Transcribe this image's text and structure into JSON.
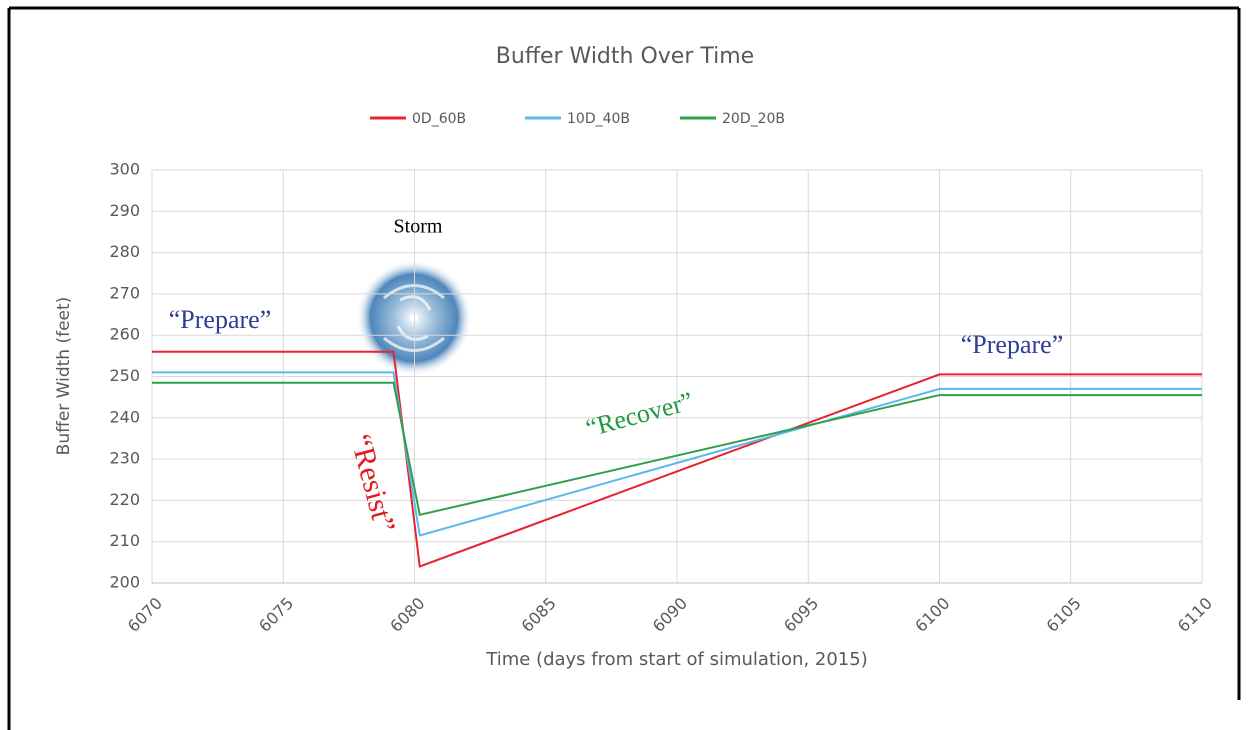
{
  "chart_data": {
    "type": "line",
    "title": "Buffer Width Over Time",
    "x_label": "Time (days from start of simulation, 2015)",
    "y_label": "Buffer  Width (feet)",
    "x": [
      6070,
      6079.2,
      6080.2,
      6100,
      6110
    ],
    "series": [
      {
        "name": "0D_60B",
        "color": "#e8222e",
        "values": [
          256,
          256,
          204,
          250.5,
          250.5
        ]
      },
      {
        "name": "10D_40B",
        "color": "#5bb8ea",
        "values": [
          251,
          251,
          211.5,
          247,
          247
        ]
      },
      {
        "name": "20D_20B",
        "color": "#2ea04a",
        "values": [
          248.5,
          248.5,
          216.5,
          245.5,
          245.5
        ]
      }
    ],
    "xlim": [
      6070,
      6110
    ],
    "xticks": [
      6070,
      6075,
      6080,
      6085,
      6090,
      6095,
      6100,
      6105,
      6110
    ],
    "ylim": [
      200,
      300
    ],
    "yticks": [
      200,
      210,
      220,
      230,
      240,
      250,
      260,
      270,
      280,
      290,
      300
    ],
    "grid": true,
    "annotations": [
      "Storm",
      "“Prepare”",
      "“Resist”",
      "“Recover”",
      "“Prepare”"
    ]
  }
}
